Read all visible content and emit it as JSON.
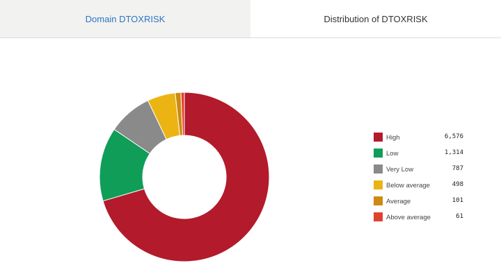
{
  "tabs": [
    {
      "label": "Domain DTOXRISK",
      "active": false
    },
    {
      "label": "Distribution of DTOXRISK",
      "active": true
    }
  ],
  "chart_data": {
    "type": "pie",
    "donut": true,
    "categories": [
      "High",
      "Low",
      "Very Low",
      "Below average",
      "Average",
      "Above average"
    ],
    "values": [
      6576,
      1314,
      787,
      498,
      101,
      61
    ],
    "value_labels": [
      "6,576",
      "1,314",
      "787",
      "498",
      "101",
      "61"
    ],
    "colors": [
      "#b31a2b",
      "#0f9d58",
      "#8a8a8a",
      "#ecb413",
      "#cc8a12",
      "#e0412f"
    ],
    "legend_position": "right"
  }
}
